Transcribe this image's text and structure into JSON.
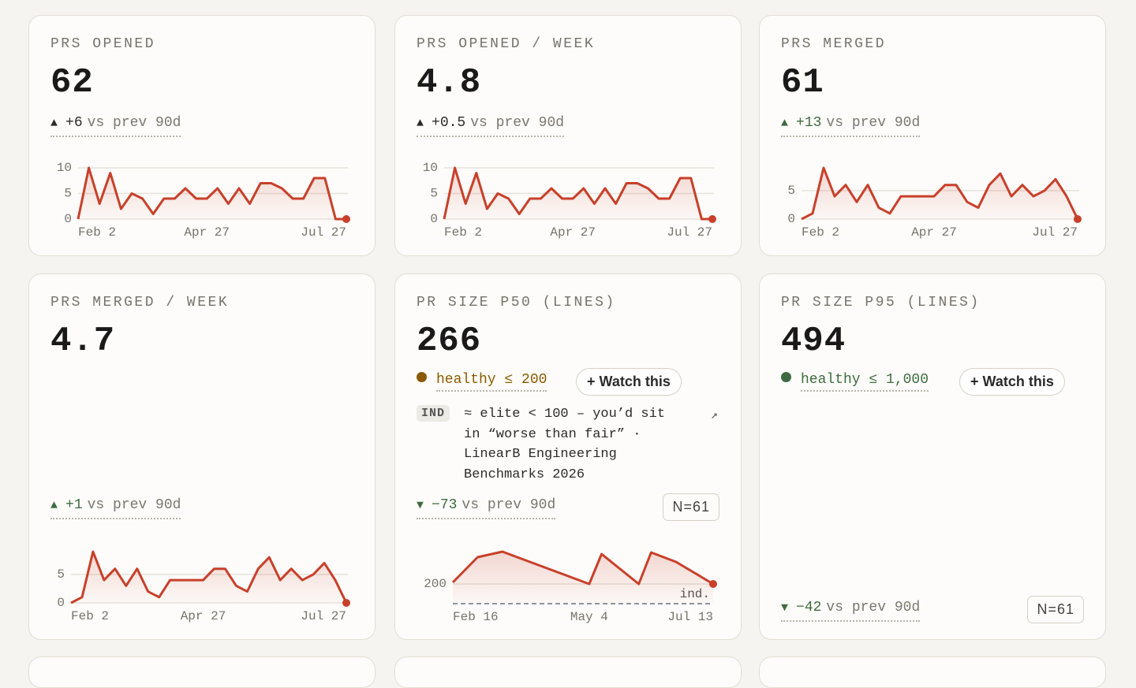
{
  "cards": [
    {
      "label": "PRS OPENED",
      "value": "62",
      "delta": {
        "arrow": "▲",
        "change": "+6",
        "suffix": "vs prev 90d",
        "color": "#2b2b2b"
      },
      "chart": {
        "type": "line",
        "color": "#c8402a",
        "x": [
          0,
          1,
          2,
          3,
          4,
          5,
          6,
          7,
          8,
          9,
          10,
          11,
          12,
          13,
          14,
          15,
          16,
          17,
          18,
          19,
          20,
          21,
          22,
          23,
          24,
          25
        ],
        "values": [
          0,
          10,
          3,
          9,
          2,
          5,
          4,
          1,
          4,
          4,
          6,
          4,
          4,
          6,
          3,
          6,
          3,
          7,
          7,
          6,
          4,
          4,
          8,
          8,
          0,
          0
        ],
        "xlim": [
          0,
          25
        ],
        "ylim": [
          0,
          10
        ],
        "yticks": [
          0,
          5,
          10
        ],
        "xticks": [
          {
            "value": 0,
            "label": "Feb 2"
          },
          {
            "value": 12,
            "label": "Apr 27"
          },
          {
            "value": 25,
            "label": "Jul 27"
          }
        ]
      }
    },
    {
      "label": "PRS OPENED / WEEK",
      "value": "4.8",
      "delta": {
        "arrow": "▲",
        "change": "+0.5",
        "suffix": "vs prev 90d",
        "color": "#2b2b2b"
      },
      "chart": {
        "type": "line",
        "color": "#c8402a",
        "x": [
          0,
          1,
          2,
          3,
          4,
          5,
          6,
          7,
          8,
          9,
          10,
          11,
          12,
          13,
          14,
          15,
          16,
          17,
          18,
          19,
          20,
          21,
          22,
          23,
          24,
          25
        ],
        "values": [
          0,
          10,
          3,
          9,
          2,
          5,
          4,
          1,
          4,
          4,
          6,
          4,
          4,
          6,
          3,
          6,
          3,
          7,
          7,
          6,
          4,
          4,
          8,
          8,
          0,
          0
        ],
        "xlim": [
          0,
          25
        ],
        "ylim": [
          0,
          10
        ],
        "yticks": [
          0,
          5,
          10
        ],
        "xticks": [
          {
            "value": 0,
            "label": "Feb 2"
          },
          {
            "value": 12,
            "label": "Apr 27"
          },
          {
            "value": 25,
            "label": "Jul 27"
          }
        ]
      }
    },
    {
      "label": "PRS MERGED",
      "value": "61",
      "delta": {
        "arrow": "▲",
        "change": "+13",
        "suffix": "vs prev 90d",
        "color": "#3d6b3f"
      },
      "chart": {
        "type": "line",
        "color": "#c8402a",
        "x": [
          0,
          1,
          2,
          3,
          4,
          5,
          6,
          7,
          8,
          9,
          10,
          11,
          12,
          13,
          14,
          15,
          16,
          17,
          18,
          19,
          20,
          21,
          22,
          23,
          24,
          25
        ],
        "values": [
          0,
          1,
          9,
          4,
          6,
          3,
          6,
          2,
          1,
          4,
          4,
          4,
          4,
          6,
          6,
          3,
          2,
          6,
          8,
          4,
          6,
          4,
          5,
          7,
          4,
          0
        ],
        "xlim": [
          0,
          25
        ],
        "ylim": [
          0,
          9
        ],
        "yticks": [
          0,
          5
        ],
        "xticks": [
          {
            "value": 0,
            "label": "Feb 2"
          },
          {
            "value": 12,
            "label": "Apr 27"
          },
          {
            "value": 25,
            "label": "Jul 27"
          }
        ]
      }
    },
    {
      "label": "PRS MERGED / WEEK",
      "value": "4.7",
      "delta": {
        "arrow": "▲",
        "change": "+1",
        "suffix": "vs prev 90d",
        "color": "#3d6b3f"
      },
      "chart": {
        "type": "line",
        "color": "#c8402a",
        "x": [
          0,
          1,
          2,
          3,
          4,
          5,
          6,
          7,
          8,
          9,
          10,
          11,
          12,
          13,
          14,
          15,
          16,
          17,
          18,
          19,
          20,
          21,
          22,
          23,
          24,
          25
        ],
        "values": [
          0,
          1,
          9,
          4,
          6,
          3,
          6,
          2,
          1,
          4,
          4,
          4,
          4,
          6,
          6,
          3,
          2,
          6,
          8,
          4,
          6,
          4,
          5,
          7,
          4,
          0
        ],
        "xlim": [
          0,
          25
        ],
        "ylim": [
          0,
          9
        ],
        "yticks": [
          0,
          5
        ],
        "xticks": [
          {
            "value": 0,
            "label": "Feb 2"
          },
          {
            "value": 12,
            "label": "Apr 27"
          },
          {
            "value": 25,
            "label": "Jul 27"
          }
        ]
      }
    },
    {
      "label": "PR SIZE P50 (LINES)",
      "value": "266",
      "status": {
        "text": "healthy ≤ 200",
        "color": "#8a5a00"
      },
      "button": "+ Watch this",
      "benchmark": {
        "tag": "IND",
        "text": "≈ elite < 100 – you’d sit in “worse than fair” · LinearB Engineering Benchmarks 2026",
        "link": "↗"
      },
      "delta": {
        "arrow": "▼",
        "change": "−73",
        "suffix": "vs prev 90d",
        "color": "#3d6b3f"
      },
      "sample": "N=61",
      "chart": {
        "type": "line",
        "color": "#c8402a",
        "x": [
          0,
          2,
          4,
          11,
          12,
          15,
          16,
          18,
          21
        ],
        "values": [
          208,
          336,
          364,
          200,
          352,
          200,
          360,
          312,
          200
        ],
        "xlim": [
          0,
          21
        ],
        "ylim": [
          100,
          364
        ],
        "yticks": [
          200
        ],
        "reference": {
          "value": 100,
          "label": "ind."
        },
        "xticks": [
          {
            "value": 0,
            "label": "Feb 16"
          },
          {
            "value": 11,
            "label": "May 4"
          },
          {
            "value": 21,
            "label": "Jul 13"
          }
        ]
      }
    },
    {
      "label": "PR SIZE P95 (LINES)",
      "value": "494",
      "status": {
        "text": "healthy ≤ 1,000",
        "color": "#3d6b3f"
      },
      "button": "+ Watch this",
      "delta": {
        "arrow": "▼",
        "change": "−42",
        "suffix": "vs prev 90d",
        "color": "#3d6b3f"
      },
      "sample": "N=61"
    }
  ]
}
